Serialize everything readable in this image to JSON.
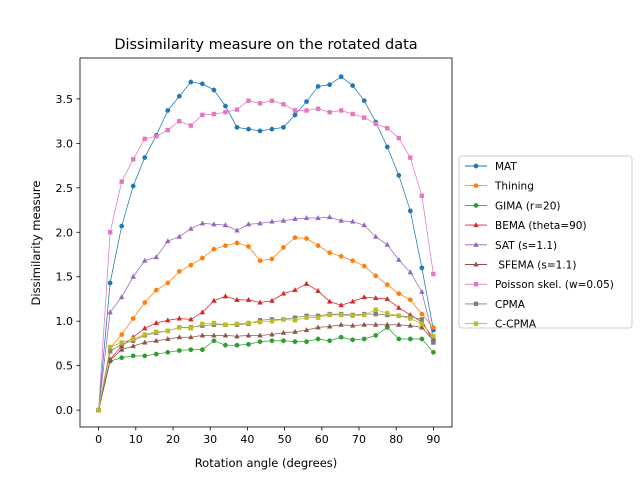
{
  "chart_data": {
    "type": "line",
    "title": "Dissimilarity measure on the rotated data",
    "xlabel": "Rotation angle (degrees)",
    "ylabel": "Dissimilarity measure",
    "xlim": [
      -5,
      95
    ],
    "ylim": [
      -0.19,
      3.96
    ],
    "xticks": [
      "0",
      "10",
      "20",
      "30",
      "40",
      "50",
      "60",
      "70",
      "80",
      "90"
    ],
    "yticks": [
      "0.0",
      "0.5",
      "1.0",
      "1.5",
      "2.0",
      "2.5",
      "3.0",
      "3.5"
    ],
    "grid": false,
    "legend_position": "center-right-outside",
    "x": [
      0,
      3.1,
      6.2,
      9.3,
      12.4,
      15.5,
      18.6,
      21.7,
      24.8,
      27.9,
      31,
      34.1,
      37.2,
      40.3,
      43.4,
      46.6,
      49.7,
      52.8,
      55.9,
      59,
      62.1,
      65.2,
      68.3,
      71.4,
      74.5,
      77.6,
      80.7,
      83.8,
      86.9,
      90
    ],
    "series": [
      {
        "name": "MAT",
        "color": "#1f77b4",
        "marker": "circle",
        "values": [
          0.0,
          1.43,
          2.07,
          2.52,
          2.84,
          3.09,
          3.37,
          3.53,
          3.69,
          3.67,
          3.6,
          3.42,
          3.18,
          3.16,
          3.14,
          3.16,
          3.18,
          3.32,
          3.47,
          3.64,
          3.66,
          3.75,
          3.65,
          3.48,
          3.24,
          2.96,
          2.64,
          2.24,
          1.6,
          0.9
        ]
      },
      {
        "name": "Thining",
        "color": "#ff7f0e",
        "marker": "circle",
        "values": [
          0.0,
          0.7,
          0.85,
          1.03,
          1.21,
          1.35,
          1.43,
          1.56,
          1.63,
          1.71,
          1.81,
          1.85,
          1.88,
          1.84,
          1.68,
          1.7,
          1.83,
          1.94,
          1.93,
          1.85,
          1.77,
          1.73,
          1.68,
          1.62,
          1.51,
          1.41,
          1.31,
          1.24,
          1.08,
          0.93
        ]
      },
      {
        "name": "GIMA (r=20)",
        "color": "#2ca02c",
        "marker": "circle",
        "values": [
          0.0,
          0.55,
          0.59,
          0.61,
          0.61,
          0.63,
          0.65,
          0.67,
          0.68,
          0.68,
          0.78,
          0.73,
          0.73,
          0.74,
          0.77,
          0.78,
          0.78,
          0.77,
          0.77,
          0.8,
          0.78,
          0.82,
          0.79,
          0.8,
          0.84,
          0.93,
          0.8,
          0.8,
          0.8,
          0.65
        ]
      },
      {
        "name": "BEMA (theta=90)",
        "color": "#d62728",
        "marker": "triangle",
        "values": [
          0.0,
          0.57,
          0.72,
          0.82,
          0.92,
          0.98,
          1.01,
          1.03,
          1.02,
          1.1,
          1.23,
          1.28,
          1.24,
          1.24,
          1.21,
          1.23,
          1.31,
          1.35,
          1.42,
          1.34,
          1.22,
          1.18,
          1.22,
          1.27,
          1.26,
          1.25,
          1.15,
          1.07,
          0.99,
          0.8
        ]
      },
      {
        "name": "SAT (s=1.1)",
        "color": "#9467bd",
        "marker": "triangle",
        "values": [
          0.0,
          1.1,
          1.27,
          1.5,
          1.68,
          1.72,
          1.9,
          1.95,
          2.04,
          2.1,
          2.09,
          2.08,
          2.02,
          2.09,
          2.1,
          2.12,
          2.13,
          2.15,
          2.16,
          2.16,
          2.17,
          2.13,
          2.12,
          2.08,
          1.95,
          1.86,
          1.69,
          1.55,
          1.33,
          0.81
        ]
      },
      {
        "name": " SFEMA (s=1.1)",
        "color": "#8c564b",
        "marker": "triangle",
        "values": [
          0.0,
          0.56,
          0.68,
          0.72,
          0.76,
          0.78,
          0.8,
          0.82,
          0.82,
          0.84,
          0.84,
          0.84,
          0.83,
          0.84,
          0.84,
          0.85,
          0.87,
          0.88,
          0.9,
          0.93,
          0.94,
          0.96,
          0.95,
          0.96,
          0.96,
          0.96,
          0.96,
          0.95,
          0.93,
          0.78
        ]
      },
      {
        "name": "Poisson skel. (w=0.05)",
        "color": "#e377c2",
        "marker": "square",
        "values": [
          0.0,
          2.0,
          2.57,
          2.82,
          3.05,
          3.08,
          3.15,
          3.25,
          3.2,
          3.32,
          3.33,
          3.35,
          3.38,
          3.48,
          3.45,
          3.48,
          3.44,
          3.37,
          3.37,
          3.39,
          3.35,
          3.37,
          3.33,
          3.29,
          3.22,
          3.17,
          3.06,
          2.84,
          2.41,
          1.53
        ]
      },
      {
        "name": "CPMA",
        "color": "#7f7f7f",
        "marker": "square",
        "values": [
          0.0,
          0.66,
          0.74,
          0.78,
          0.84,
          0.87,
          0.89,
          0.93,
          0.93,
          0.95,
          0.96,
          0.96,
          0.96,
          0.97,
          1.01,
          1.02,
          1.02,
          1.04,
          1.06,
          1.06,
          1.08,
          1.08,
          1.07,
          1.08,
          1.08,
          1.07,
          1.06,
          1.05,
          1.02,
          0.76
        ]
      },
      {
        "name": "C-CPMA",
        "color": "#bcbd22",
        "marker": "square",
        "values": [
          0.0,
          0.71,
          0.76,
          0.8,
          0.85,
          0.88,
          0.89,
          0.93,
          0.92,
          0.97,
          0.98,
          0.96,
          0.97,
          0.98,
          0.99,
          1.0,
          1.02,
          1.01,
          1.04,
          1.04,
          1.07,
          1.07,
          1.06,
          1.07,
          1.13,
          1.09,
          1.06,
          1.03,
          0.97,
          0.83
        ]
      }
    ]
  }
}
